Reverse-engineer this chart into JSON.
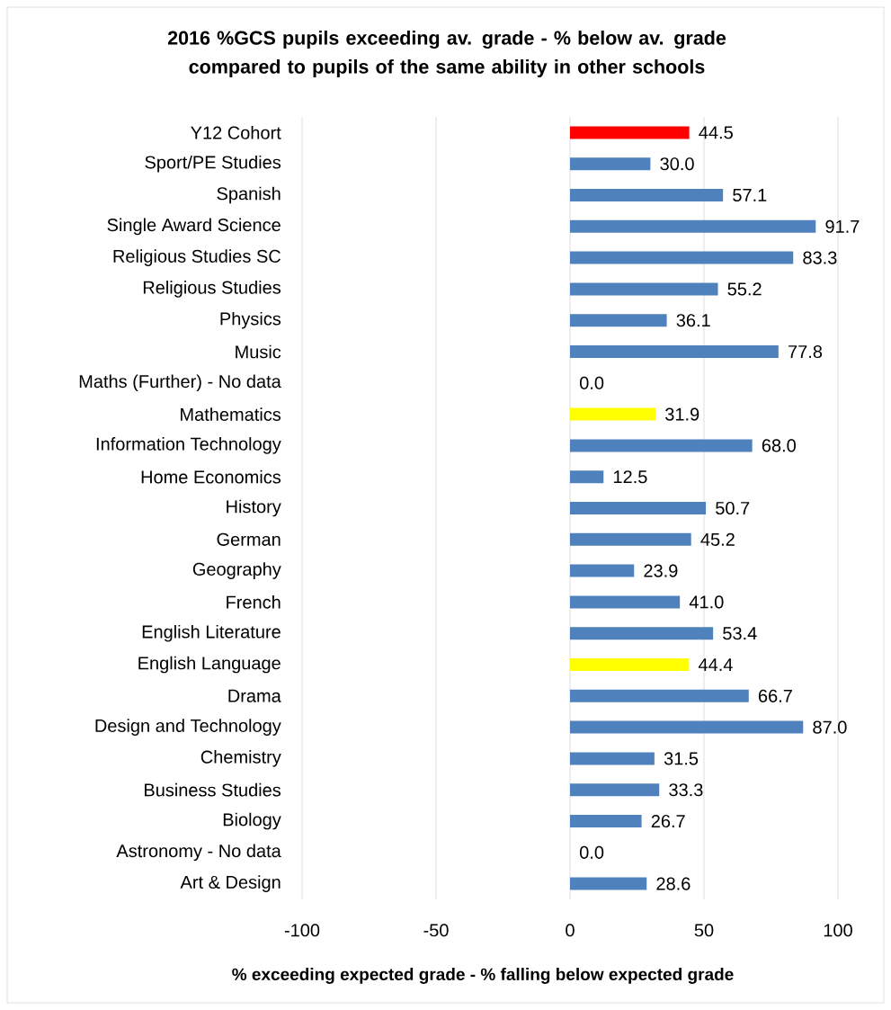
{
  "chart_data": {
    "type": "bar",
    "orientation": "horizontal",
    "title": "2016 %GCS pupils exceeding av. grade - % below av. grade compared to pupils of the same ability in other schools",
    "xlabel": "% exceeding expected grade - % falling below expected grade",
    "categories": [
      "Y12 Cohort",
      "Sport/PE Studies",
      "Spanish",
      "Single Award Science",
      "Religious Studies SC",
      "Religious Studies",
      "Physics",
      "Music",
      "Maths (Further) - No data",
      "Mathematics",
      "Information Technology",
      "Home Economics",
      "History",
      "German",
      "Geography",
      "French",
      "English Literature",
      "English Language",
      "Drama",
      "Design and Technology",
      "Chemistry",
      "Business Studies",
      "Biology",
      "Astronomy - No data",
      "Art & Design"
    ],
    "values": [
      44.5,
      30.0,
      57.1,
      91.7,
      83.3,
      55.2,
      36.1,
      77.8,
      0.0,
      31.9,
      68.0,
      12.5,
      50.7,
      45.2,
      23.9,
      41.0,
      53.4,
      44.4,
      66.7,
      87.0,
      31.5,
      33.3,
      26.7,
      0.0,
      28.6
    ],
    "value_labels": [
      "44.5",
      "30.0",
      "57.1",
      "91.7",
      "83.3",
      "55.2",
      "36.1",
      "77.8",
      "0.0",
      "31.9",
      "68.0",
      "12.5",
      "50.7",
      "45.2",
      "23.9",
      "41.0",
      "53.4",
      "44.4",
      "66.7",
      "87.0",
      "31.5",
      "33.3",
      "26.7",
      "0.0",
      "28.6"
    ],
    "colors": [
      "#ff0000",
      "#4f81bd",
      "#4f81bd",
      "#4f81bd",
      "#4f81bd",
      "#4f81bd",
      "#4f81bd",
      "#4f81bd",
      "#4f81bd",
      "#ffff00",
      "#4f81bd",
      "#4f81bd",
      "#4f81bd",
      "#4f81bd",
      "#4f81bd",
      "#4f81bd",
      "#4f81bd",
      "#ffff00",
      "#4f81bd",
      "#4f81bd",
      "#4f81bd",
      "#4f81bd",
      "#4f81bd",
      "#4f81bd",
      "#4f81bd"
    ],
    "xlim": [
      -100,
      100
    ],
    "xticks": [
      -100,
      -50,
      0,
      50,
      100
    ],
    "grid": "x"
  }
}
